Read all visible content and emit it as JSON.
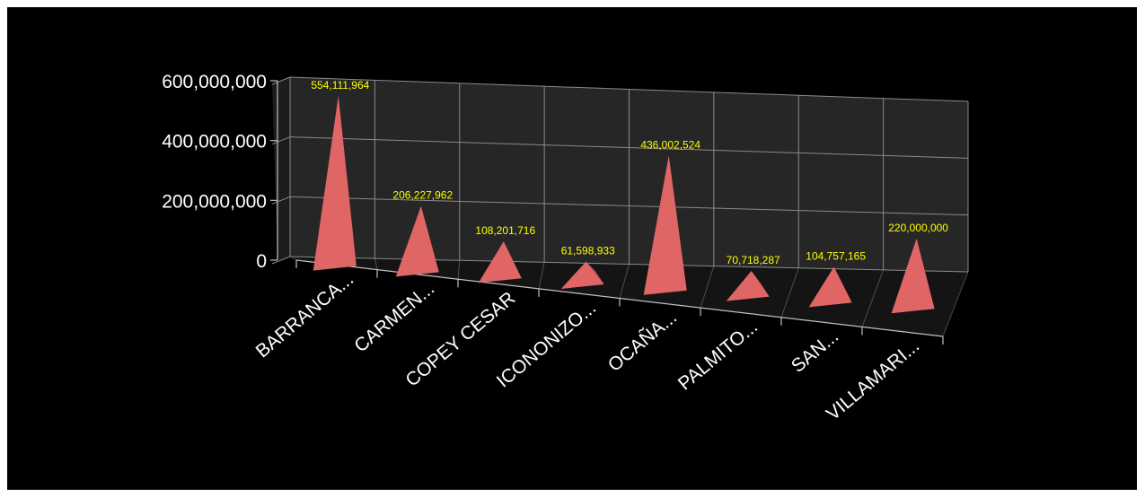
{
  "chart_data": {
    "type": "bar",
    "shape": "pyramid-3d",
    "categories": [
      "BARRANCA...",
      "CARMEN...",
      "COPEY CESAR",
      "ICONONIZO...",
      "OCAÑA...",
      "PALMITO...",
      "SAN...",
      "VILLAMARI..."
    ],
    "values": [
      554111964,
      206227962,
      108201716,
      61598933,
      436002524,
      70718287,
      104757165,
      220000000
    ],
    "data_labels": [
      "554,111,964",
      "206,227,962",
      "108,201,716",
      "61,598,933",
      "436,002,524",
      "70,718,287",
      "104,757,165",
      "220,000,000"
    ],
    "yticks": [
      "0",
      "200,000,000",
      "400,000,000",
      "600,000,000"
    ],
    "ylim": [
      0,
      600000000
    ],
    "grid": true,
    "legend": "none",
    "colors": {
      "background": "#000000",
      "pyramid_light": "#e06666",
      "pyramid_dark": "#a33a3a",
      "data_label": "#ffff00",
      "text": "#ffffff"
    }
  }
}
